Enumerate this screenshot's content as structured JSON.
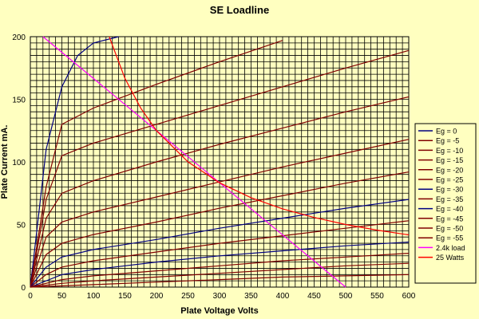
{
  "chart_data": {
    "type": "line",
    "title": "SE Loadline",
    "xlabel": "Plate Voltage  Volts",
    "ylabel": "Plate Current  mA.",
    "xlim": [
      0,
      600
    ],
    "ylim": [
      0,
      200
    ],
    "x_ticks": [
      0,
      50,
      100,
      150,
      200,
      250,
      300,
      350,
      400,
      450,
      500,
      550,
      600
    ],
    "y_ticks": [
      0,
      50,
      100,
      150,
      200
    ],
    "grid": true,
    "legend_position": "right",
    "colors": {
      "background": "#ffffc0",
      "plot_background": "#ffffc0",
      "grid": "#000000",
      "blue_curve": "#000080",
      "dark_red_curve": "#800000",
      "load_line": "#ff00ff",
      "power_curve": "#ff0000"
    },
    "series": [
      {
        "name": "Eg = 0",
        "color": "#000080",
        "points": [
          [
            0,
            0
          ],
          [
            25,
            110
          ],
          [
            50,
            160
          ],
          [
            75,
            185
          ],
          [
            100,
            195
          ],
          [
            140,
            200
          ]
        ]
      },
      {
        "name": "Eg = -5",
        "color": "#800000",
        "points": [
          [
            0,
            0
          ],
          [
            25,
            80
          ],
          [
            50,
            130
          ],
          [
            100,
            143
          ],
          [
            200,
            162
          ],
          [
            300,
            180
          ],
          [
            400,
            197
          ]
        ]
      },
      {
        "name": "Eg = -10",
        "color": "#800000",
        "points": [
          [
            0,
            0
          ],
          [
            25,
            70
          ],
          [
            50,
            105
          ],
          [
            100,
            115
          ],
          [
            200,
            130
          ],
          [
            300,
            145
          ],
          [
            400,
            160
          ],
          [
            500,
            175
          ],
          [
            600,
            189
          ]
        ]
      },
      {
        "name": "Eg = -15",
        "color": "#800000",
        "points": [
          [
            0,
            0
          ],
          [
            25,
            55
          ],
          [
            50,
            75
          ],
          [
            100,
            85
          ],
          [
            200,
            100
          ],
          [
            300,
            114
          ],
          [
            400,
            127
          ],
          [
            500,
            140
          ],
          [
            600,
            152
          ]
        ]
      },
      {
        "name": "Eg = -20",
        "color": "#800000",
        "points": [
          [
            0,
            0
          ],
          [
            25,
            40
          ],
          [
            50,
            52
          ],
          [
            100,
            60
          ],
          [
            200,
            72
          ],
          [
            300,
            84
          ],
          [
            400,
            96
          ],
          [
            500,
            107
          ],
          [
            600,
            118
          ]
        ]
      },
      {
        "name": "Eg = -25",
        "color": "#800000",
        "points": [
          [
            0,
            0
          ],
          [
            25,
            26
          ],
          [
            50,
            35
          ],
          [
            100,
            42
          ],
          [
            200,
            52
          ],
          [
            300,
            63
          ],
          [
            400,
            73
          ],
          [
            500,
            83
          ],
          [
            600,
            92
          ]
        ]
      },
      {
        "name": "Eg = -30",
        "color": "#000080",
        "points": [
          [
            0,
            0
          ],
          [
            25,
            16
          ],
          [
            50,
            24
          ],
          [
            100,
            30
          ],
          [
            200,
            38
          ],
          [
            300,
            47
          ],
          [
            400,
            55
          ],
          [
            500,
            63
          ],
          [
            600,
            70
          ]
        ]
      },
      {
        "name": "Eg = -35",
        "color": "#800000",
        "points": [
          [
            0,
            0
          ],
          [
            25,
            10
          ],
          [
            50,
            16
          ],
          [
            100,
            21
          ],
          [
            200,
            28
          ],
          [
            300,
            35
          ],
          [
            400,
            41
          ],
          [
            500,
            47
          ],
          [
            600,
            53
          ]
        ]
      },
      {
        "name": "Eg = -40",
        "color": "#000080",
        "points": [
          [
            0,
            0
          ],
          [
            50,
            10
          ],
          [
            100,
            14
          ],
          [
            200,
            20
          ],
          [
            300,
            25
          ],
          [
            400,
            29
          ],
          [
            500,
            33
          ],
          [
            600,
            36
          ]
        ]
      },
      {
        "name": "Eg = -45",
        "color": "#800000",
        "points": [
          [
            0,
            0
          ],
          [
            50,
            6
          ],
          [
            100,
            9
          ],
          [
            200,
            13
          ],
          [
            300,
            17
          ],
          [
            400,
            21
          ],
          [
            500,
            24
          ],
          [
            600,
            27
          ]
        ]
      },
      {
        "name": "Eg = -50",
        "color": "#800000",
        "points": [
          [
            0,
            0
          ],
          [
            50,
            3
          ],
          [
            100,
            5
          ],
          [
            200,
            8
          ],
          [
            300,
            11
          ],
          [
            400,
            14
          ],
          [
            500,
            17
          ],
          [
            600,
            19
          ]
        ]
      },
      {
        "name": "Eg = -55",
        "color": "#800000",
        "points": [
          [
            0,
            0
          ],
          [
            100,
            2
          ],
          [
            200,
            4
          ],
          [
            300,
            6
          ],
          [
            400,
            8
          ],
          [
            500,
            9
          ],
          [
            600,
            10
          ]
        ]
      },
      {
        "name": "2.4k load",
        "color": "#ff00ff",
        "points": [
          [
            20,
            200
          ],
          [
            500,
            0
          ]
        ]
      },
      {
        "name": "25 Watts",
        "color": "#ff0000",
        "points": [
          [
            125,
            200
          ],
          [
            150,
            166.7
          ],
          [
            175,
            142.9
          ],
          [
            200,
            125
          ],
          [
            250,
            100
          ],
          [
            300,
            83.3
          ],
          [
            350,
            71.4
          ],
          [
            400,
            62.5
          ],
          [
            450,
            55.6
          ],
          [
            500,
            50
          ],
          [
            550,
            45.5
          ],
          [
            600,
            41.7
          ]
        ]
      }
    ]
  }
}
